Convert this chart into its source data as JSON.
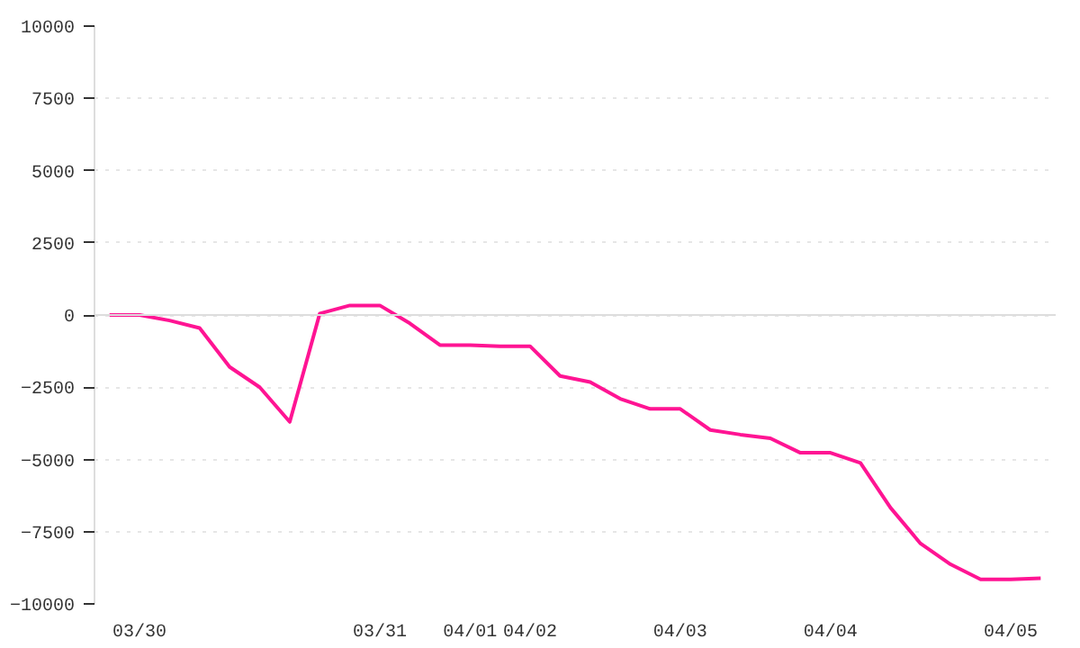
{
  "chart_data": {
    "type": "line",
    "categories": [
      null,
      "03/30",
      null,
      null,
      null,
      null,
      null,
      null,
      null,
      "03/31",
      null,
      null,
      "04/01",
      null,
      "04/02",
      null,
      null,
      null,
      null,
      "04/03",
      null,
      null,
      null,
      null,
      "04/04",
      null,
      null,
      null,
      null,
      null,
      "04/05",
      null
    ],
    "series": [
      {
        "color": "#ff1493",
        "values": [
          0,
          0,
          -190,
          -450,
          -1800,
          -2500,
          -3700,
          50,
          330,
          330,
          -290,
          -1040,
          -1040,
          -1080,
          -1080,
          -2110,
          -2320,
          -2900,
          -3250,
          -3250,
          -3980,
          -4140,
          -4270,
          -4770,
          -4770,
          -5120,
          -6670,
          -7910,
          -8630,
          -9150,
          -9150,
          -9110
        ]
      }
    ],
    "ylim": [
      -10000,
      10000
    ],
    "yticks": [
      -10000,
      -7500,
      -5000,
      -2500,
      0,
      2500,
      5000,
      7500,
      10000
    ],
    "grid": "y",
    "marker": "none",
    "line_style": "solid",
    "ref_lines": [
      {
        "axis": "y",
        "value": 0,
        "color": "#dddddd"
      }
    ]
  }
}
